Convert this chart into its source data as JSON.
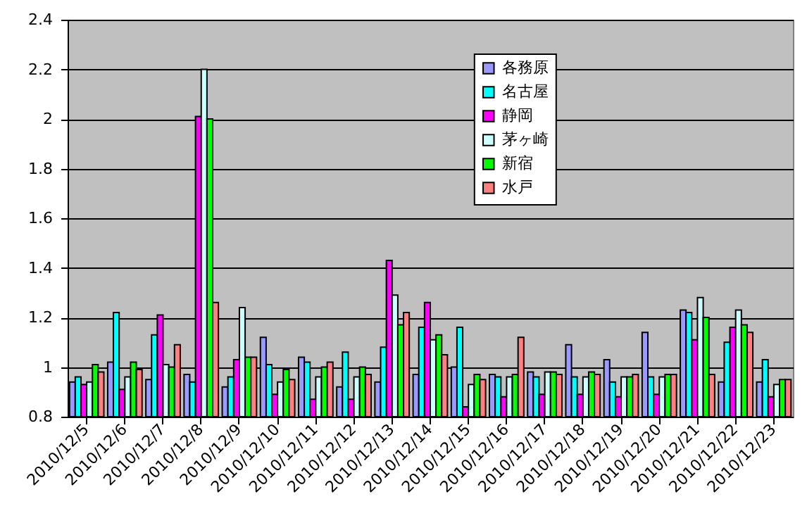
{
  "chart_data": {
    "type": "bar",
    "categories": [
      "2010/12/5",
      "2010/12/6",
      "2010/12/7",
      "2010/12/8",
      "2010/12/9",
      "2010/12/10",
      "2010/12/11",
      "2010/12/12",
      "2010/12/13",
      "2010/12/14",
      "2010/12/15",
      "2010/12/16",
      "2010/12/17",
      "2010/12/18",
      "2010/12/19",
      "2010/12/20",
      "2010/12/21",
      "2010/12/22",
      "2010/12/23"
    ],
    "series": [
      {
        "name": "各務原",
        "color": "#9999ff",
        "values": [
          0.94,
          1.02,
          0.95,
          0.97,
          0.92,
          1.12,
          1.04,
          0.92,
          0.94,
          0.97,
          1.0,
          0.97,
          0.98,
          1.09,
          1.03,
          1.14,
          1.23,
          0.94,
          0.94
        ]
      },
      {
        "name": "名古屋",
        "color": "#00ffff",
        "values": [
          0.96,
          1.22,
          1.13,
          0.94,
          0.96,
          1.01,
          1.02,
          1.06,
          1.08,
          1.16,
          1.16,
          0.96,
          0.96,
          0.96,
          0.94,
          0.96,
          1.22,
          1.1,
          1.03
        ]
      },
      {
        "name": "静岡",
        "color": "#ff00ff",
        "values": [
          0.93,
          0.91,
          1.21,
          2.01,
          1.03,
          0.89,
          0.87,
          0.87,
          1.43,
          1.26,
          0.84,
          0.88,
          0.89,
          0.89,
          0.88,
          0.89,
          1.11,
          1.16,
          0.88
        ]
      },
      {
        "name": "茅ヶ崎",
        "color": "#ccffff",
        "values": [
          0.94,
          0.96,
          1.01,
          2.2,
          1.24,
          0.94,
          0.96,
          0.96,
          1.29,
          1.11,
          0.93,
          0.96,
          0.98,
          0.96,
          0.96,
          0.96,
          1.28,
          1.23,
          0.93
        ]
      },
      {
        "name": "新宿",
        "color": "#00ff00",
        "values": [
          1.01,
          1.02,
          1.0,
          2.0,
          1.04,
          0.99,
          1.0,
          1.0,
          1.17,
          1.13,
          0.97,
          0.97,
          0.98,
          0.98,
          0.96,
          0.97,
          1.2,
          1.17,
          0.95
        ]
      },
      {
        "name": "水戸",
        "color": "#ff8080",
        "values": [
          0.98,
          0.99,
          1.09,
          1.26,
          1.04,
          0.95,
          1.02,
          0.97,
          1.22,
          1.05,
          0.95,
          1.12,
          0.97,
          0.97,
          0.97,
          0.97,
          0.97,
          1.14,
          0.95
        ]
      }
    ],
    "ylim": [
      0.8,
      2.4
    ],
    "yticks": [
      0.8,
      1,
      1.2,
      1.4,
      1.6,
      1.8,
      2,
      2.2,
      2.4
    ],
    "grid": "y",
    "legend": "top"
  }
}
